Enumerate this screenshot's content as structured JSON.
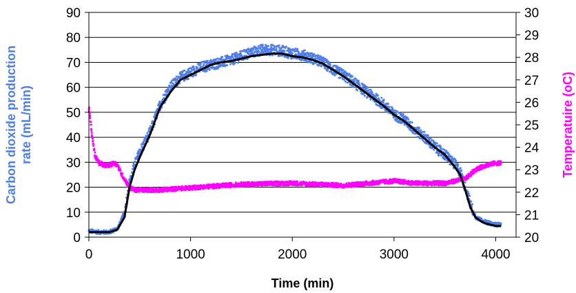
{
  "chart_data": {
    "type": "scatter",
    "title": "",
    "xlabel": "Time (min)",
    "ylabel_left": "Carbon dioxide production rate (mL/min)",
    "ylabel_right": "Temperatuire (oC)",
    "xlim": [
      0,
      4200
    ],
    "ylim_left": [
      0,
      90
    ],
    "ylim_right": [
      20,
      30
    ],
    "x_ticks": [
      0,
      1000,
      2000,
      3000,
      4000
    ],
    "y_ticks_left": [
      0,
      10,
      20,
      30,
      40,
      50,
      60,
      70,
      80,
      90
    ],
    "y_ticks_right": [
      20,
      21,
      22,
      23,
      24,
      25,
      26,
      27,
      28,
      29,
      30
    ],
    "grid": "horizontal",
    "legend": "none",
    "colors": {
      "co2_raw": "#4f7fe6",
      "co2_smooth": "#000000",
      "temperature": "#ff00ff",
      "left_axis_title": "#4f7fe6",
      "right_axis_title": "#ff00ff"
    },
    "series": [
      {
        "axis": "left",
        "style": "points",
        "x": [
          0,
          100,
          200,
          280,
          350,
          400,
          450,
          500,
          600,
          700,
          800,
          900,
          1000,
          1100,
          1200,
          1300,
          1400,
          1500,
          1600,
          1700,
          1800,
          1900,
          2000,
          2100,
          2200,
          2300,
          2400,
          2500,
          2600,
          2700,
          2800,
          2900,
          3000,
          3100,
          3200,
          3300,
          3400,
          3500,
          3600,
          3650,
          3700,
          3750,
          3800,
          3850,
          3900,
          3950,
          4000,
          4050
        ],
        "y": [
          2.5,
          2,
          2,
          3.5,
          10,
          22,
          29,
          34,
          42,
          53,
          60,
          64,
          66,
          68,
          69,
          70,
          71,
          72.5,
          74,
          75,
          75,
          74.5,
          73.5,
          73,
          71.5,
          70,
          67,
          65,
          62,
          59,
          56,
          53,
          49,
          47,
          43,
          40,
          36,
          33,
          29,
          26,
          20,
          13,
          8,
          7,
          6,
          5.5,
          5,
          5
        ]
      },
      {
        "axis": "left",
        "style": "line",
        "x": [
          0,
          100,
          200,
          280,
          350,
          400,
          450,
          500,
          600,
          700,
          800,
          900,
          1000,
          1100,
          1200,
          1300,
          1400,
          1500,
          1600,
          1700,
          1800,
          1900,
          2000,
          2100,
          2200,
          2300,
          2400,
          2500,
          2600,
          2700,
          2800,
          2900,
          3000,
          3100,
          3200,
          3300,
          3400,
          3500,
          3600,
          3650,
          3700,
          3750,
          3800,
          3850,
          3900,
          3950,
          4000,
          4050
        ],
        "y": [
          2,
          2,
          2,
          3,
          8,
          20,
          27,
          32,
          41,
          52,
          58,
          63,
          65,
          67,
          69,
          70,
          70.5,
          71.5,
          72.5,
          73,
          73.5,
          73.5,
          72.5,
          72,
          71,
          69.5,
          67,
          64.5,
          61.5,
          58.5,
          55.5,
          52.5,
          49,
          46.5,
          43,
          39.5,
          36,
          33,
          28,
          25,
          19,
          12,
          8,
          6.5,
          5.5,
          5,
          4.5,
          4.5
        ]
      },
      {
        "axis": "right",
        "style": "points",
        "x": [
          0,
          10,
          30,
          60,
          100,
          150,
          200,
          250,
          280,
          320,
          360,
          400,
          450,
          500,
          700,
          1000,
          1500,
          2000,
          2500,
          3000,
          3200,
          3500,
          3600,
          3700,
          3800,
          3900,
          4000,
          4050
        ],
        "y": [
          25.7,
          25.3,
          24.5,
          23.6,
          23.3,
          23.2,
          23.2,
          23.3,
          23.2,
          22.8,
          22.5,
          22.2,
          22.1,
          22.1,
          22.1,
          22.2,
          22.35,
          22.4,
          22.3,
          22.5,
          22.4,
          22.4,
          22.5,
          22.6,
          23,
          23.2,
          23.3,
          23.3
        ]
      }
    ]
  }
}
